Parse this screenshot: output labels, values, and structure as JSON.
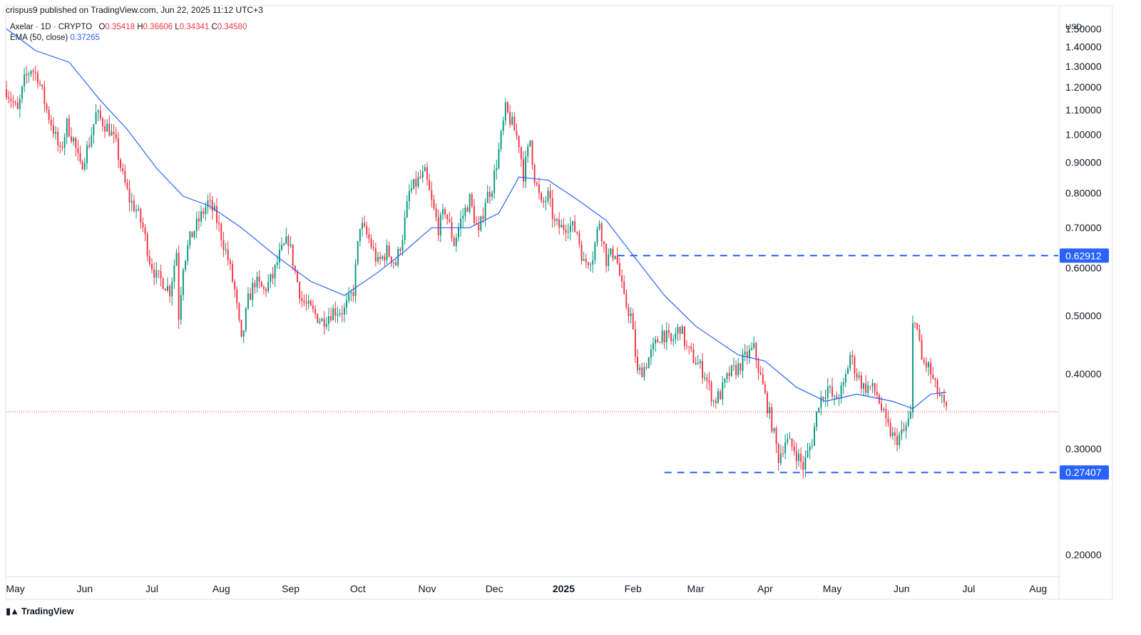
{
  "header": {
    "publisher": "crispus9 published on TradingView.com, Jun 22, 2025 11:12 UTC+3",
    "symbol": "Axelar · 1D · CRYPTO",
    "ohlc": {
      "o_label": "O",
      "o": "0.35418",
      "h_label": "H",
      "h": "0.36606",
      "l_label": "L",
      "l": "0.34341",
      "c_label": "C",
      "c": "0.34580"
    },
    "ema_label": "EMA (50, close)",
    "ema_value": "0.37265",
    "currency": "USD"
  },
  "footer": {
    "logo_text": "TradingView"
  },
  "colors": {
    "up": "#089981",
    "down": "#f23645",
    "ema": "#2962ff",
    "level": "#2962ff",
    "last_price": "#f23645"
  },
  "chart_data": {
    "type": "candlestick",
    "title": "Axelar · 1D · CRYPTO",
    "ylabel": "USD",
    "y_axis_scale": "log",
    "y_range": [
      0.185,
      1.63
    ],
    "x_range": [
      "2024-04-27",
      "2025-08-10"
    ],
    "price_ticks": [
      "0.20000",
      "0.30000",
      "0.40000",
      "0.50000",
      "0.60000",
      "0.70000",
      "0.80000",
      "0.90000",
      "1.00000",
      "1.10000",
      "1.20000",
      "1.30000",
      "1.40000",
      "1.50000"
    ],
    "month_ticks": [
      {
        "date": "2024-05-01",
        "label": "May"
      },
      {
        "date": "2024-06-01",
        "label": "Jun"
      },
      {
        "date": "2024-07-01",
        "label": "Jul"
      },
      {
        "date": "2024-08-01",
        "label": "Aug"
      },
      {
        "date": "2024-09-01",
        "label": "Sep"
      },
      {
        "date": "2024-10-01",
        "label": "Oct"
      },
      {
        "date": "2024-11-01",
        "label": "Nov"
      },
      {
        "date": "2024-12-01",
        "label": "Dec"
      },
      {
        "date": "2025-01-01",
        "label": "2025"
      },
      {
        "date": "2025-02-01",
        "label": "Feb"
      },
      {
        "date": "2025-03-01",
        "label": "Mar"
      },
      {
        "date": "2025-04-01",
        "label": "Apr"
      },
      {
        "date": "2025-05-01",
        "label": "May"
      },
      {
        "date": "2025-06-01",
        "label": "Jun"
      },
      {
        "date": "2025-07-01",
        "label": "Jul"
      },
      {
        "date": "2025-08-01",
        "label": "Aug"
      }
    ],
    "horizontal_levels": [
      {
        "value": 0.62912,
        "label": "0.62912",
        "from": "2025-01-25"
      },
      {
        "value": 0.27407,
        "label": "0.27407",
        "from": "2025-02-15"
      }
    ],
    "last_price": 0.3458,
    "price_path": [
      [
        "2024-04-27",
        1.19
      ],
      [
        "2024-05-02",
        1.09
      ],
      [
        "2024-05-05",
        1.23
      ],
      [
        "2024-05-08",
        1.29
      ],
      [
        "2024-05-11",
        1.25
      ],
      [
        "2024-05-15",
        1.1
      ],
      [
        "2024-05-18",
        1.02
      ],
      [
        "2024-05-21",
        0.93
      ],
      [
        "2024-05-24",
        1.04
      ],
      [
        "2024-05-27",
        0.98
      ],
      [
        "2024-05-30",
        0.88
      ],
      [
        "2024-06-03",
        0.97
      ],
      [
        "2024-06-06",
        1.08
      ],
      [
        "2024-06-09",
        1.05
      ],
      [
        "2024-06-12",
        1.02
      ],
      [
        "2024-06-15",
        0.96
      ],
      [
        "2024-06-18",
        0.85
      ],
      [
        "2024-06-21",
        0.78
      ],
      [
        "2024-06-24",
        0.75
      ],
      [
        "2024-06-27",
        0.7
      ],
      [
        "2024-06-30",
        0.62
      ],
      [
        "2024-07-03",
        0.58
      ],
      [
        "2024-07-06",
        0.57
      ],
      [
        "2024-07-09",
        0.55
      ],
      [
        "2024-07-12",
        0.64
      ],
      [
        "2024-07-13",
        0.5
      ],
      [
        "2024-07-15",
        0.61
      ],
      [
        "2024-07-18",
        0.67
      ],
      [
        "2024-07-22",
        0.72
      ],
      [
        "2024-07-26",
        0.77
      ],
      [
        "2024-07-29",
        0.74
      ],
      [
        "2024-08-01",
        0.68
      ],
      [
        "2024-08-04",
        0.62
      ],
      [
        "2024-08-07",
        0.55
      ],
      [
        "2024-08-10",
        0.45
      ],
      [
        "2024-08-13",
        0.53
      ],
      [
        "2024-08-16",
        0.57
      ],
      [
        "2024-08-20",
        0.55
      ],
      [
        "2024-08-24",
        0.58
      ],
      [
        "2024-08-27",
        0.63
      ],
      [
        "2024-08-31",
        0.67
      ],
      [
        "2024-09-03",
        0.59
      ],
      [
        "2024-09-06",
        0.53
      ],
      [
        "2024-09-10",
        0.51
      ],
      [
        "2024-09-15",
        0.49
      ],
      [
        "2024-09-20",
        0.51
      ],
      [
        "2024-09-25",
        0.51
      ],
      [
        "2024-09-29",
        0.55
      ],
      [
        "2024-10-02",
        0.71
      ],
      [
        "2024-10-06",
        0.67
      ],
      [
        "2024-10-10",
        0.61
      ],
      [
        "2024-10-14",
        0.64
      ],
      [
        "2024-10-18",
        0.61
      ],
      [
        "2024-10-21",
        0.68
      ],
      [
        "2024-10-24",
        0.8
      ],
      [
        "2024-10-28",
        0.84
      ],
      [
        "2024-10-31",
        0.86
      ],
      [
        "2024-11-03",
        0.77
      ],
      [
        "2024-11-06",
        0.7
      ],
      [
        "2024-11-09",
        0.75
      ],
      [
        "2024-11-13",
        0.66
      ],
      [
        "2024-11-16",
        0.72
      ],
      [
        "2024-11-20",
        0.78
      ],
      [
        "2024-11-24",
        0.68
      ],
      [
        "2024-11-27",
        0.78
      ],
      [
        "2024-11-30",
        0.82
      ],
      [
        "2024-12-03",
        0.94
      ],
      [
        "2024-12-06",
        1.1
      ],
      [
        "2024-12-09",
        1.04
      ],
      [
        "2024-12-12",
        0.97
      ],
      [
        "2024-12-14",
        0.86
      ],
      [
        "2024-12-17",
        0.98
      ],
      [
        "2024-12-19",
        0.85
      ],
      [
        "2024-12-22",
        0.76
      ],
      [
        "2024-12-25",
        0.79
      ],
      [
        "2024-12-28",
        0.71
      ],
      [
        "2024-12-31",
        0.7
      ],
      [
        "2025-01-03",
        0.71
      ],
      [
        "2025-01-07",
        0.69
      ],
      [
        "2025-01-10",
        0.61
      ],
      [
        "2025-01-14",
        0.63
      ],
      [
        "2025-01-17",
        0.72
      ],
      [
        "2025-01-20",
        0.62
      ],
      [
        "2025-01-24",
        0.64
      ],
      [
        "2025-01-28",
        0.53
      ],
      [
        "2025-01-31",
        0.5
      ],
      [
        "2025-02-03",
        0.4
      ],
      [
        "2025-02-06",
        0.41
      ],
      [
        "2025-02-10",
        0.44
      ],
      [
        "2025-02-14",
        0.47
      ],
      [
        "2025-02-18",
        0.45
      ],
      [
        "2025-02-22",
        0.48
      ],
      [
        "2025-02-25",
        0.44
      ],
      [
        "2025-03-01",
        0.42
      ],
      [
        "2025-03-05",
        0.4
      ],
      [
        "2025-03-09",
        0.36
      ],
      [
        "2025-03-12",
        0.37
      ],
      [
        "2025-03-16",
        0.4
      ],
      [
        "2025-03-20",
        0.41
      ],
      [
        "2025-03-24",
        0.43
      ],
      [
        "2025-03-27",
        0.44
      ],
      [
        "2025-03-31",
        0.38
      ],
      [
        "2025-04-04",
        0.33
      ],
      [
        "2025-04-07",
        0.29
      ],
      [
        "2025-04-10",
        0.31
      ],
      [
        "2025-04-14",
        0.3
      ],
      [
        "2025-04-18",
        0.28
      ],
      [
        "2025-04-22",
        0.31
      ],
      [
        "2025-04-25",
        0.36
      ],
      [
        "2025-04-29",
        0.38
      ],
      [
        "2025-05-02",
        0.36
      ],
      [
        "2025-05-06",
        0.38
      ],
      [
        "2025-05-09",
        0.43
      ],
      [
        "2025-05-12",
        0.4
      ],
      [
        "2025-05-15",
        0.38
      ],
      [
        "2025-05-18",
        0.38
      ],
      [
        "2025-05-21",
        0.37
      ],
      [
        "2025-05-25",
        0.33
      ],
      [
        "2025-05-29",
        0.31
      ],
      [
        "2025-06-02",
        0.32
      ],
      [
        "2025-06-05",
        0.34
      ],
      [
        "2025-06-06",
        0.48
      ],
      [
        "2025-06-07",
        0.5
      ],
      [
        "2025-06-10",
        0.42
      ],
      [
        "2025-06-13",
        0.41
      ],
      [
        "2025-06-16",
        0.38
      ],
      [
        "2025-06-19",
        0.36
      ],
      [
        "2025-06-21",
        0.3458
      ]
    ],
    "ema_50_path": [
      [
        "2024-04-27",
        1.5
      ],
      [
        "2024-05-10",
        1.38
      ],
      [
        "2024-05-25",
        1.32
      ],
      [
        "2024-06-08",
        1.14
      ],
      [
        "2024-06-20",
        1.02
      ],
      [
        "2024-07-03",
        0.88
      ],
      [
        "2024-07-15",
        0.79
      ],
      [
        "2024-07-27",
        0.76
      ],
      [
        "2024-08-10",
        0.7
      ],
      [
        "2024-08-25",
        0.63
      ],
      [
        "2024-09-10",
        0.57
      ],
      [
        "2024-09-25",
        0.54
      ],
      [
        "2024-10-10",
        0.59
      ],
      [
        "2024-10-22",
        0.64
      ],
      [
        "2024-11-03",
        0.7
      ],
      [
        "2024-11-20",
        0.7
      ],
      [
        "2024-12-03",
        0.74
      ],
      [
        "2024-12-12",
        0.85
      ],
      [
        "2024-12-25",
        0.84
      ],
      [
        "2025-01-07",
        0.78
      ],
      [
        "2025-01-20",
        0.72
      ],
      [
        "2025-02-01",
        0.63
      ],
      [
        "2025-02-15",
        0.54
      ],
      [
        "2025-03-01",
        0.48
      ],
      [
        "2025-03-20",
        0.43
      ],
      [
        "2025-04-01",
        0.42
      ],
      [
        "2025-04-15",
        0.38
      ],
      [
        "2025-04-28",
        0.36
      ],
      [
        "2025-05-12",
        0.37
      ],
      [
        "2025-05-28",
        0.36
      ],
      [
        "2025-06-06",
        0.35
      ],
      [
        "2025-06-14",
        0.37
      ],
      [
        "2025-06-21",
        0.37265
      ]
    ]
  }
}
